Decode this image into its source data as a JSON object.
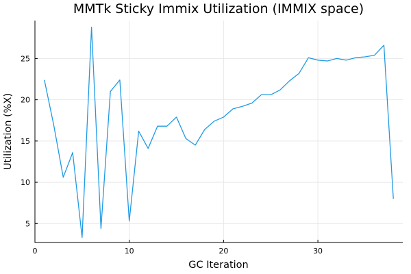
{
  "chart_data": {
    "type": "line",
    "title": "MMTk Sticky Immix Utilization (IMMIX space)",
    "xlabel": "GC Iteration",
    "ylabel": "Utilization (%X)",
    "xlim": [
      0,
      39
    ],
    "ylim": [
      2.7,
      29.6
    ],
    "xticks": [
      0,
      10,
      20,
      30
    ],
    "yticks": [
      5,
      10,
      15,
      20,
      25
    ],
    "grid": true,
    "legend": "none",
    "series": [
      {
        "color": "#1f9ae4",
        "x": [
          1,
          2,
          3,
          4,
          5,
          6,
          7,
          8,
          9,
          10,
          11,
          12,
          13,
          14,
          15,
          16,
          17,
          18,
          19,
          20,
          21,
          22,
          23,
          24,
          25,
          26,
          27,
          28,
          29,
          30,
          31,
          32,
          33,
          34,
          35,
          36,
          37,
          38
        ],
        "values": [
          22.4,
          16.9,
          10.6,
          13.6,
          3.3,
          28.8,
          4.4,
          21.0,
          22.4,
          5.3,
          16.2,
          14.1,
          16.8,
          16.8,
          17.9,
          15.3,
          14.5,
          16.4,
          17.4,
          17.9,
          18.9,
          19.2,
          19.6,
          20.6,
          20.6,
          21.2,
          22.3,
          23.2,
          25.1,
          24.8,
          24.7,
          25.0,
          24.8,
          25.1,
          25.2,
          25.4,
          26.6,
          8.0
        ]
      }
    ]
  }
}
